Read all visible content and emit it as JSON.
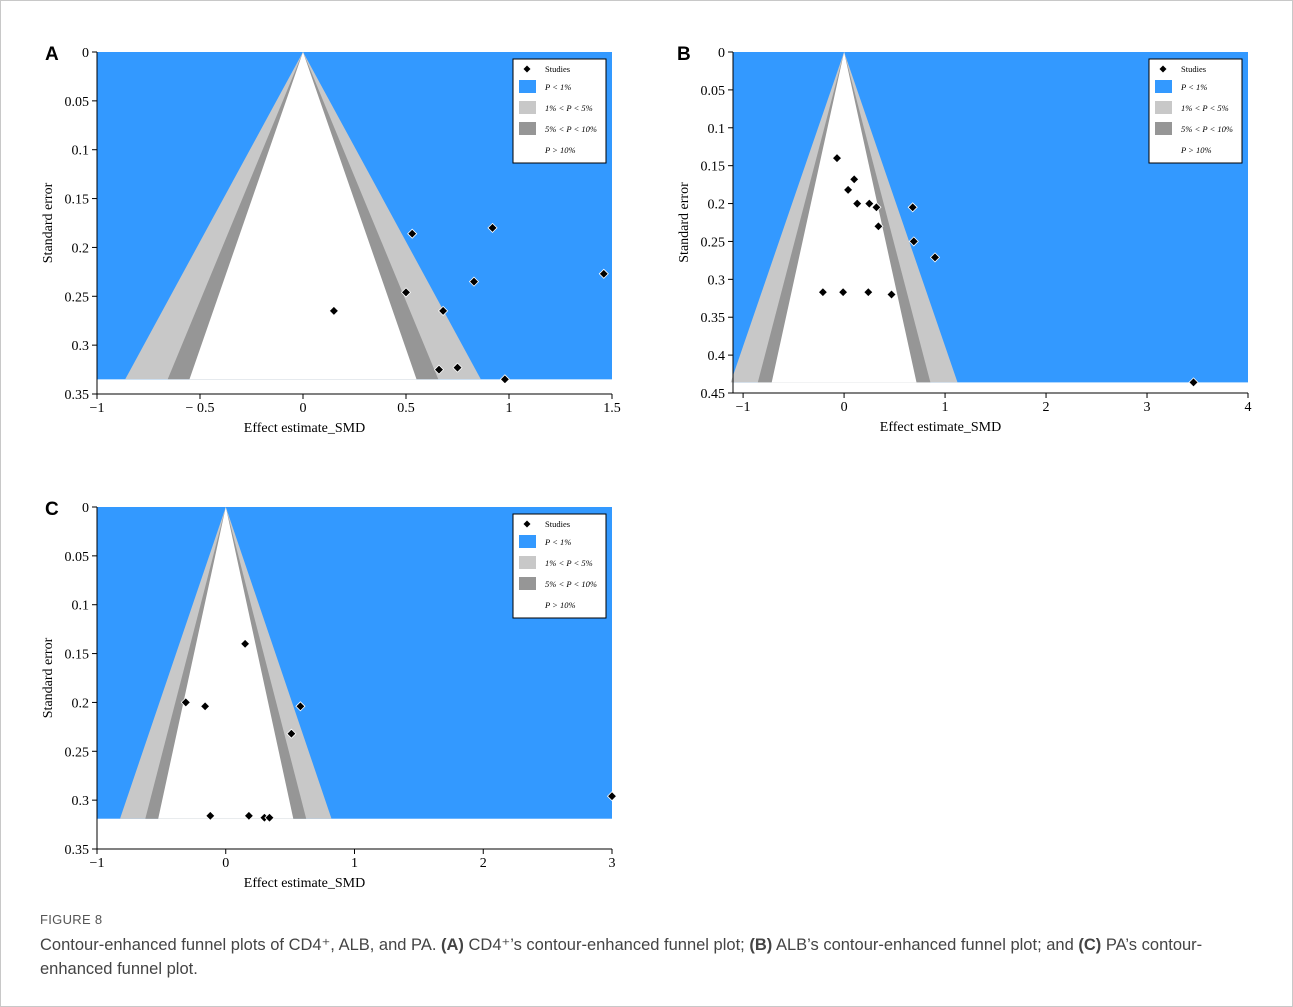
{
  "colors": {
    "p1": "#3399ff",
    "p5": "#c8c8c8",
    "p10": "#969696",
    "ns": "#ffffff",
    "marker": "#000000"
  },
  "legend_labels": [
    "Studies",
    "P < 1%",
    "1% < P < 5%",
    "5% < P < 10%",
    "P > 10%"
  ],
  "chart_data": [
    {
      "type": "scatter",
      "panel_label": "A",
      "xlabel": "Effect estimate_SMD",
      "ylabel": "Standard error",
      "xlim": [
        -1,
        1.5
      ],
      "ylim": [
        0,
        0.35
      ],
      "se_max": 0.335,
      "y_reversed": true,
      "legend_position": "top-right",
      "x_ticks": [
        -1,
        -0.5,
        0,
        0.5,
        1,
        1.5
      ],
      "x_tick_labels": [
        "−1",
        "− 0.5",
        "0",
        "0.5",
        "1",
        "1.5"
      ],
      "y_ticks": [
        0,
        0.05,
        0.1,
        0.15,
        0.2,
        0.25,
        0.3,
        0.35
      ],
      "y_tick_labels": [
        "0",
        "0.05",
        "0.1",
        "0.15",
        "0.2",
        "0.25",
        "0.3",
        "0.35"
      ],
      "points": [
        {
          "x": 0.53,
          "y": 0.186
        },
        {
          "x": 0.92,
          "y": 0.18
        },
        {
          "x": 1.46,
          "y": 0.227
        },
        {
          "x": 0.83,
          "y": 0.235
        },
        {
          "x": 0.5,
          "y": 0.246
        },
        {
          "x": 0.68,
          "y": 0.265
        },
        {
          "x": 0.15,
          "y": 0.265
        },
        {
          "x": 0.66,
          "y": 0.325
        },
        {
          "x": 0.75,
          "y": 0.323
        },
        {
          "x": 0.98,
          "y": 0.335
        }
      ]
    },
    {
      "type": "scatter",
      "panel_label": "B",
      "xlabel": "Effect estimate_SMD",
      "ylabel": "Standard error",
      "xlim": [
        -1.1,
        4
      ],
      "ylim": [
        0,
        0.45
      ],
      "se_max": 0.436,
      "y_reversed": true,
      "legend_position": "top-right",
      "x_ticks": [
        -1,
        0,
        1,
        2,
        3,
        4
      ],
      "x_tick_labels": [
        "−1",
        "0",
        "1",
        "2",
        "3",
        "4"
      ],
      "y_ticks": [
        0,
        0.05,
        0.1,
        0.15,
        0.2,
        0.25,
        0.3,
        0.35,
        0.4,
        0.45
      ],
      "y_tick_labels": [
        "0",
        "0.05",
        "0.1",
        "0.15",
        "0.2",
        "0.25",
        "0.3",
        "0.35",
        "0.4",
        "0.45"
      ],
      "points": [
        {
          "x": -0.07,
          "y": 0.14
        },
        {
          "x": 0.1,
          "y": 0.168
        },
        {
          "x": 0.04,
          "y": 0.182
        },
        {
          "x": 0.13,
          "y": 0.2
        },
        {
          "x": 0.25,
          "y": 0.2
        },
        {
          "x": 0.32,
          "y": 0.205
        },
        {
          "x": 0.68,
          "y": 0.205
        },
        {
          "x": 0.34,
          "y": 0.23
        },
        {
          "x": 0.69,
          "y": 0.25
        },
        {
          "x": 0.9,
          "y": 0.271
        },
        {
          "x": -0.21,
          "y": 0.317
        },
        {
          "x": -0.01,
          "y": 0.317
        },
        {
          "x": 0.24,
          "y": 0.317
        },
        {
          "x": 0.47,
          "y": 0.32
        },
        {
          "x": 3.46,
          "y": 0.436
        }
      ]
    },
    {
      "type": "scatter",
      "panel_label": "C",
      "xlabel": "Effect estimate_SMD",
      "ylabel": "Standard error",
      "xlim": [
        -1,
        3
      ],
      "ylim": [
        0,
        0.35
      ],
      "se_max": 0.319,
      "y_reversed": true,
      "legend_position": "top-right",
      "x_ticks": [
        -1,
        0,
        1,
        2,
        3
      ],
      "x_tick_labels": [
        "−1",
        "0",
        "1",
        "2",
        "3"
      ],
      "y_ticks": [
        0,
        0.05,
        0.1,
        0.15,
        0.2,
        0.25,
        0.3,
        0.35
      ],
      "y_tick_labels": [
        "0",
        "0.05",
        "0.1",
        "0.15",
        "0.2",
        "0.25",
        "0.3",
        "0.35"
      ],
      "points": [
        {
          "x": 0.15,
          "y": 0.14
        },
        {
          "x": -0.31,
          "y": 0.2
        },
        {
          "x": -0.16,
          "y": 0.204
        },
        {
          "x": 0.58,
          "y": 0.204
        },
        {
          "x": 0.51,
          "y": 0.232
        },
        {
          "x": 3.0,
          "y": 0.296
        },
        {
          "x": -0.12,
          "y": 0.316
        },
        {
          "x": 0.18,
          "y": 0.316
        },
        {
          "x": 0.3,
          "y": 0.318
        },
        {
          "x": 0.34,
          "y": 0.318
        }
      ]
    }
  ],
  "caption": {
    "label": "FIGURE 8",
    "intro": "Contour-enhanced funnel plots of CD4⁺, ALB, and PA.",
    "a_label": "(A)",
    "a_text": "CD4⁺’s contour-enhanced funnel plot;",
    "b_label": "(B)",
    "b_text": "ALB’s contour-enhanced funnel plot; and",
    "c_label": "(C)",
    "c_text": "PA’s contour-enhanced funnel plot."
  }
}
